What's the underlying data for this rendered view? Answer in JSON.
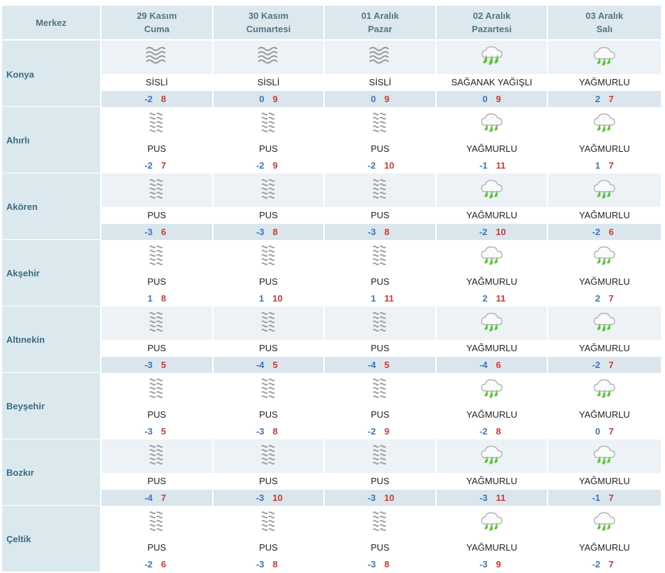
{
  "header": {
    "merkez_label": "Merkez",
    "days": [
      {
        "date": "29 Kasım",
        "weekday": "Cuma"
      },
      {
        "date": "30 Kasım",
        "weekday": "Cumartesi"
      },
      {
        "date": "01 Aralık",
        "weekday": "Pazar"
      },
      {
        "date": "02 Aralık",
        "weekday": "Pazartesi"
      },
      {
        "date": "03 Aralık",
        "weekday": "Salı"
      }
    ]
  },
  "colors": {
    "header_bg": "#dbe9ef",
    "min_temp": "#3a78b8",
    "max_temp": "#c93a3a",
    "rain_icon": "#5cc33a",
    "mist_icon": "#9a9a9a"
  },
  "rows": [
    {
      "city": "Konya",
      "days": [
        {
          "icon": "fog-icon",
          "cond": "SİSLİ",
          "min": "-2",
          "max": "8"
        },
        {
          "icon": "fog-icon",
          "cond": "SİSLİ",
          "min": "0",
          "max": "9"
        },
        {
          "icon": "fog-icon",
          "cond": "SİSLİ",
          "min": "0",
          "max": "9"
        },
        {
          "icon": "shower-icon",
          "cond": "SAĞANAK YAĞIŞLI",
          "min": "0",
          "max": "9"
        },
        {
          "icon": "rain-icon",
          "cond": "YAĞMURLU",
          "min": "2",
          "max": "7"
        }
      ]
    },
    {
      "city": "Ahırlı",
      "days": [
        {
          "icon": "mist-icon",
          "cond": "PUS",
          "min": "-2",
          "max": "7"
        },
        {
          "icon": "mist-icon",
          "cond": "PUS",
          "min": "-2",
          "max": "9"
        },
        {
          "icon": "mist-icon",
          "cond": "PUS",
          "min": "-2",
          "max": "10"
        },
        {
          "icon": "rain-icon",
          "cond": "YAĞMURLU",
          "min": "-1",
          "max": "11"
        },
        {
          "icon": "rain-icon",
          "cond": "YAĞMURLU",
          "min": "1",
          "max": "7"
        }
      ]
    },
    {
      "city": "Akören",
      "days": [
        {
          "icon": "mist-icon",
          "cond": "PUS",
          "min": "-3",
          "max": "6"
        },
        {
          "icon": "mist-icon",
          "cond": "PUS",
          "min": "-3",
          "max": "8"
        },
        {
          "icon": "mist-icon",
          "cond": "PUS",
          "min": "-3",
          "max": "8"
        },
        {
          "icon": "rain-icon",
          "cond": "YAĞMURLU",
          "min": "-2",
          "max": "10"
        },
        {
          "icon": "rain-icon",
          "cond": "YAĞMURLU",
          "min": "-2",
          "max": "6"
        }
      ]
    },
    {
      "city": "Akşehir",
      "days": [
        {
          "icon": "mist-icon",
          "cond": "PUS",
          "min": "1",
          "max": "8"
        },
        {
          "icon": "mist-icon",
          "cond": "PUS",
          "min": "1",
          "max": "10"
        },
        {
          "icon": "mist-icon",
          "cond": "PUS",
          "min": "1",
          "max": "11"
        },
        {
          "icon": "rain-icon",
          "cond": "YAĞMURLU",
          "min": "2",
          "max": "11"
        },
        {
          "icon": "rain-icon",
          "cond": "YAĞMURLU",
          "min": "2",
          "max": "7"
        }
      ]
    },
    {
      "city": "Altınekin",
      "days": [
        {
          "icon": "mist-icon",
          "cond": "PUS",
          "min": "-3",
          "max": "5"
        },
        {
          "icon": "mist-icon",
          "cond": "PUS",
          "min": "-4",
          "max": "5"
        },
        {
          "icon": "mist-icon",
          "cond": "PUS",
          "min": "-4",
          "max": "5"
        },
        {
          "icon": "rain-icon",
          "cond": "YAĞMURLU",
          "min": "-4",
          "max": "6"
        },
        {
          "icon": "rain-icon",
          "cond": "YAĞMURLU",
          "min": "-2",
          "max": "7"
        }
      ]
    },
    {
      "city": "Beyşehir",
      "days": [
        {
          "icon": "mist-icon",
          "cond": "PUS",
          "min": "-3",
          "max": "5"
        },
        {
          "icon": "mist-icon",
          "cond": "PUS",
          "min": "-3",
          "max": "8"
        },
        {
          "icon": "mist-icon",
          "cond": "PUS",
          "min": "-2",
          "max": "9"
        },
        {
          "icon": "rain-icon",
          "cond": "YAĞMURLU",
          "min": "-2",
          "max": "8"
        },
        {
          "icon": "rain-icon",
          "cond": "YAĞMURLU",
          "min": "0",
          "max": "7"
        }
      ]
    },
    {
      "city": "Bozkır",
      "days": [
        {
          "icon": "mist-icon",
          "cond": "PUS",
          "min": "-4",
          "max": "7"
        },
        {
          "icon": "mist-icon",
          "cond": "PUS",
          "min": "-3",
          "max": "10"
        },
        {
          "icon": "mist-icon",
          "cond": "PUS",
          "min": "-3",
          "max": "10"
        },
        {
          "icon": "rain-icon",
          "cond": "YAĞMURLU",
          "min": "-3",
          "max": "11"
        },
        {
          "icon": "rain-icon",
          "cond": "YAĞMURLU",
          "min": "-1",
          "max": "7"
        }
      ]
    },
    {
      "city": "Çeltik",
      "days": [
        {
          "icon": "mist-icon",
          "cond": "PUS",
          "min": "-2",
          "max": "6"
        },
        {
          "icon": "mist-icon",
          "cond": "PUS",
          "min": "-3",
          "max": "8"
        },
        {
          "icon": "mist-icon",
          "cond": "PUS",
          "min": "-3",
          "max": "8"
        },
        {
          "icon": "rain-icon",
          "cond": "YAĞMURLU",
          "min": "-3",
          "max": "9"
        },
        {
          "icon": "rain-icon",
          "cond": "YAĞMURLU",
          "min": "-2",
          "max": "7"
        }
      ]
    }
  ]
}
